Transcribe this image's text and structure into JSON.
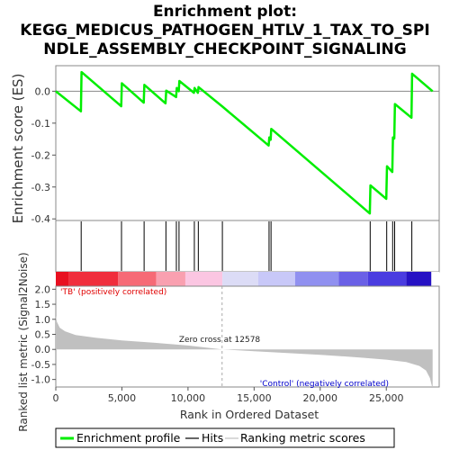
{
  "title_lines": [
    "Enrichment plot:",
    "KEGG_MEDICUS_PATHOGEN_HTLV_1_TAX_TO_SPI",
    "NDLE_ASSEMBLY_CHECKPOINT_SIGNALING"
  ],
  "colors": {
    "es_line": "#00ee00",
    "hits": "#000000",
    "ranked_fill": "#c0c0c0",
    "pos_text": "#e00000",
    "neg_text": "#0000cc",
    "zero_cross_line": "#aaaaaa"
  },
  "chart_data": [
    {
      "type": "line",
      "name": "enrichment-profile",
      "ylabel": "Enrichment score (ES)",
      "xlim": [
        0,
        29000
      ],
      "ylim": [
        -0.405,
        0.08
      ],
      "yticks": [
        0.0,
        -0.1,
        -0.2,
        -0.3,
        -0.4
      ],
      "ytick_labels": [
        "0.0",
        "-0.1",
        "-0.2",
        "-0.3",
        "-0.4"
      ],
      "points": [
        [
          0,
          0.0
        ],
        [
          1900,
          -0.063
        ],
        [
          1950,
          0.06
        ],
        [
          4950,
          -0.047
        ],
        [
          5000,
          0.025
        ],
        [
          6650,
          -0.036
        ],
        [
          6700,
          0.02
        ],
        [
          8300,
          -0.038
        ],
        [
          8350,
          0.002
        ],
        [
          9100,
          -0.018
        ],
        [
          9150,
          0.01
        ],
        [
          9300,
          0.0
        ],
        [
          9350,
          0.032
        ],
        [
          10450,
          -0.005
        ],
        [
          10500,
          0.01
        ],
        [
          10750,
          -0.005
        ],
        [
          10800,
          0.013
        ],
        [
          12600,
          -0.048
        ],
        [
          16100,
          -0.17
        ],
        [
          16150,
          -0.145
        ],
        [
          16250,
          -0.152
        ],
        [
          16300,
          -0.118
        ],
        [
          23750,
          -0.383
        ],
        [
          23800,
          -0.295
        ],
        [
          25000,
          -0.337
        ],
        [
          25050,
          -0.235
        ],
        [
          25450,
          -0.253
        ],
        [
          25500,
          -0.145
        ],
        [
          25600,
          -0.148
        ],
        [
          25650,
          -0.04
        ],
        [
          26900,
          -0.083
        ],
        [
          26950,
          0.055
        ],
        [
          28500,
          0.0
        ]
      ]
    },
    {
      "type": "scatter",
      "name": "hits",
      "hit_ranks": [
        1920,
        4970,
        6680,
        8330,
        9120,
        9320,
        10480,
        10780,
        12600,
        16130,
        16280,
        23780,
        25030,
        25480,
        25630,
        26930
      ]
    },
    {
      "type": "heatmap",
      "name": "rank-color-bar",
      "segments": [
        {
          "from": 0,
          "to": 1000,
          "color": "#e81020"
        },
        {
          "from": 1000,
          "to": 4700,
          "color": "#f02d3c"
        },
        {
          "from": 4700,
          "to": 7600,
          "color": "#f66a76"
        },
        {
          "from": 7600,
          "to": 9800,
          "color": "#f9a0b0"
        },
        {
          "from": 9800,
          "to": 12600,
          "color": "#fbc6e2"
        },
        {
          "from": 12600,
          "to": 15300,
          "color": "#dcdcf6"
        },
        {
          "from": 15300,
          "to": 18100,
          "color": "#c8c8f8"
        },
        {
          "from": 18100,
          "to": 21400,
          "color": "#9090f0"
        },
        {
          "from": 21400,
          "to": 23600,
          "color": "#6a60e6"
        },
        {
          "from": 23600,
          "to": 26500,
          "color": "#4a3ce0"
        },
        {
          "from": 26500,
          "to": 28400,
          "color": "#2612c4"
        }
      ]
    },
    {
      "type": "area",
      "name": "ranked-list-metric",
      "xlabel": "Rank in Ordered Dataset",
      "ylabel": "Ranked list metric (Signal2Noise)",
      "xlim": [
        0,
        29000
      ],
      "ylim": [
        -1.25,
        2.1
      ],
      "yticks": [
        2.0,
        1.5,
        1.0,
        0.5,
        0.0,
        -0.5,
        -1.0
      ],
      "ytick_labels": [
        "2.0",
        "1.5",
        "1.0",
        "0.5",
        "0.0",
        "-0.5",
        "-1.0"
      ],
      "xticks": [
        0,
        5000,
        10000,
        15000,
        20000,
        25000
      ],
      "xtick_labels": [
        "0",
        "5,000",
        "10,000",
        "15,000",
        "20,000",
        "25,000"
      ],
      "points": [
        [
          0,
          1.12
        ],
        [
          80,
          0.92
        ],
        [
          300,
          0.72
        ],
        [
          700,
          0.6
        ],
        [
          1500,
          0.48
        ],
        [
          3000,
          0.39
        ],
        [
          5000,
          0.3
        ],
        [
          7500,
          0.22
        ],
        [
          10000,
          0.13
        ],
        [
          12578,
          0.0
        ],
        [
          15000,
          -0.06
        ],
        [
          20000,
          -0.18
        ],
        [
          23000,
          -0.27
        ],
        [
          25000,
          -0.34
        ],
        [
          26500,
          -0.42
        ],
        [
          27500,
          -0.55
        ],
        [
          28000,
          -0.7
        ],
        [
          28300,
          -0.95
        ],
        [
          28450,
          -1.22
        ],
        [
          28500,
          -1.22
        ]
      ]
    }
  ],
  "annotations": {
    "positive": "'TB' (positively correlated)",
    "negative": "'Control' (negatively correlated)",
    "zero_cross": "Zero cross at 12578",
    "zero_cross_rank": 12578
  },
  "legend": {
    "items": [
      {
        "label": "Enrichment profile"
      },
      {
        "label": "Hits"
      },
      {
        "label": "Ranking metric scores"
      }
    ]
  }
}
